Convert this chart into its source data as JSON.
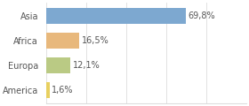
{
  "categories": [
    "Asia",
    "Africa",
    "Europa",
    "America"
  ],
  "values": [
    69.8,
    16.5,
    12.1,
    1.6
  ],
  "labels": [
    "69,8%",
    "16,5%",
    "12,1%",
    "1,6%"
  ],
  "bar_colors": [
    "#7da8d0",
    "#e8b87c",
    "#baca84",
    "#e8d060"
  ],
  "background_color": "#ffffff",
  "xlim": [
    0,
    100
  ],
  "bar_height": 0.62,
  "label_fontsize": 7.0,
  "category_fontsize": 7.0,
  "grid_color": "#dddddd",
  "text_color": "#555555"
}
